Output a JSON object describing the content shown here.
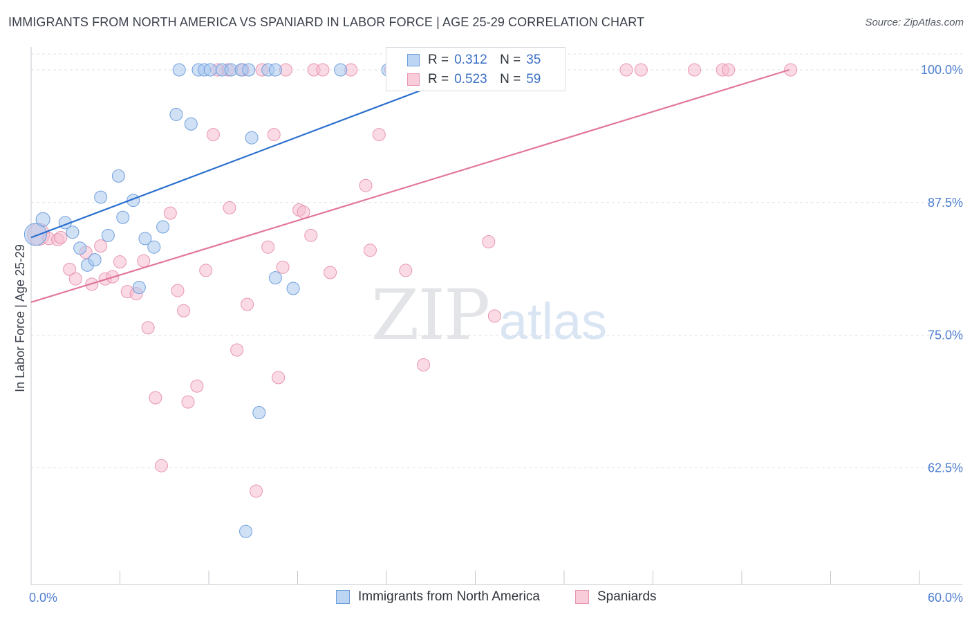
{
  "title": "IMMIGRANTS FROM NORTH AMERICA VS SPANIARD IN LABOR FORCE | AGE 25-29 CORRELATION CHART",
  "source": "Source: ZipAtlas.com",
  "watermark": {
    "zip": "ZIP",
    "atlas": "atlas"
  },
  "legend": {
    "r_label": "R =",
    "n_label": "N =",
    "series1": {
      "r": "0.312",
      "n": "35"
    },
    "series2": {
      "r": "0.523",
      "n": "59"
    }
  },
  "colors": {
    "blue_fill": "#a9c8ee",
    "blue_stroke": "#6d9edc",
    "blue_line": "#2a6fce",
    "pink_fill": "#f6bccd",
    "pink_stroke": "#e896b0",
    "pink_line": "#e2769c",
    "grid": "#dde0e6",
    "tick_text": "#4f7fd0"
  },
  "chart_data": {
    "type": "scatter",
    "title": "IMMIGRANTS FROM NORTH AMERICA VS SPANIARD IN LABOR FORCE | AGE 25-29 CORRELATION CHART",
    "xlabel": "",
    "ylabel": "In Labor Force | Age 25-29",
    "xlim": [
      0,
      60
    ],
    "ylim": [
      51.5,
      101.5
    ],
    "x_tick_labels": [
      "0.0%",
      "60.0%"
    ],
    "y_ticks": [
      62.5,
      75.0,
      87.5,
      100.0
    ],
    "y_tick_labels": [
      "62.5%",
      "75.0%",
      "87.5%",
      "100.0%"
    ],
    "grid": true,
    "legend_position": "top-center",
    "series": [
      {
        "name": "Immigrants from North America",
        "color": "blue",
        "r": 0.312,
        "n": 35,
        "trend": {
          "x": [
            0,
            30.0
          ],
          "y": [
            84.2,
            100.0
          ]
        },
        "points": [
          [
            0.3,
            84.5,
            16
          ],
          [
            0.8,
            85.9,
            10
          ],
          [
            2.3,
            85.6,
            9
          ],
          [
            2.8,
            84.7,
            9
          ],
          [
            3.3,
            83.2,
            9
          ],
          [
            3.8,
            81.6,
            9
          ],
          [
            4.3,
            82.1,
            9
          ],
          [
            4.7,
            88.0,
            9
          ],
          [
            5.2,
            84.4,
            9
          ],
          [
            5.9,
            90.0,
            9
          ],
          [
            6.2,
            86.1,
            9
          ],
          [
            6.9,
            87.7,
            9
          ],
          [
            7.3,
            79.5,
            9
          ],
          [
            7.7,
            84.1,
            9
          ],
          [
            8.3,
            83.3,
            9
          ],
          [
            8.9,
            85.2,
            9
          ],
          [
            9.8,
            95.8,
            9
          ],
          [
            10.0,
            100.0,
            9
          ],
          [
            10.8,
            94.9,
            9
          ],
          [
            11.3,
            100.0,
            9
          ],
          [
            11.7,
            100.0,
            9
          ],
          [
            12.1,
            100.0,
            9
          ],
          [
            12.9,
            100.0,
            9
          ],
          [
            13.5,
            100.0,
            9
          ],
          [
            14.2,
            100.0,
            9
          ],
          [
            14.7,
            100.0,
            9
          ],
          [
            14.5,
            56.5,
            9
          ],
          [
            14.9,
            93.6,
            9
          ],
          [
            15.4,
            67.7,
            9
          ],
          [
            16.0,
            100.0,
            9
          ],
          [
            16.5,
            100.0,
            9
          ],
          [
            16.5,
            80.4,
            9
          ],
          [
            17.7,
            79.4,
            9
          ],
          [
            20.9,
            100.0,
            9
          ],
          [
            24.1,
            100.0,
            9
          ]
        ]
      },
      {
        "name": "Spaniards",
        "color": "pink",
        "r": 0.523,
        "n": 59,
        "trend": {
          "x": [
            0,
            51.2
          ],
          "y": [
            78.1,
            100.0
          ]
        },
        "points": [
          [
            0.5,
            84.5,
            16
          ],
          [
            1.2,
            84.1,
            9
          ],
          [
            1.8,
            84.0,
            9
          ],
          [
            2.0,
            84.2,
            9
          ],
          [
            2.6,
            81.2,
            9
          ],
          [
            3.0,
            80.3,
            9
          ],
          [
            3.7,
            82.8,
            9
          ],
          [
            4.1,
            79.8,
            9
          ],
          [
            4.7,
            83.4,
            9
          ],
          [
            5.0,
            80.3,
            9
          ],
          [
            5.5,
            80.5,
            9
          ],
          [
            6.0,
            81.9,
            9
          ],
          [
            6.5,
            79.1,
            9
          ],
          [
            7.1,
            78.9,
            9
          ],
          [
            7.6,
            82.0,
            9
          ],
          [
            7.9,
            75.7,
            9
          ],
          [
            8.4,
            69.1,
            9
          ],
          [
            8.8,
            62.7,
            9
          ],
          [
            9.4,
            86.5,
            9
          ],
          [
            9.9,
            79.2,
            9
          ],
          [
            10.3,
            77.3,
            9
          ],
          [
            10.6,
            68.7,
            9
          ],
          [
            11.2,
            70.2,
            9
          ],
          [
            11.8,
            81.1,
            9
          ],
          [
            12.3,
            93.9,
            9
          ],
          [
            12.6,
            100.0,
            9
          ],
          [
            13.3,
            100.0,
            9
          ],
          [
            13.4,
            87.0,
            9
          ],
          [
            13.9,
            73.6,
            9
          ],
          [
            14.3,
            100.0,
            9
          ],
          [
            14.6,
            77.9,
            9
          ],
          [
            15.2,
            60.3,
            9
          ],
          [
            15.6,
            100.0,
            9
          ],
          [
            16.0,
            83.3,
            9
          ],
          [
            16.4,
            93.9,
            9
          ],
          [
            16.7,
            71.0,
            9
          ],
          [
            17.0,
            81.4,
            9
          ],
          [
            17.2,
            100.0,
            9
          ],
          [
            18.1,
            86.8,
            9
          ],
          [
            18.4,
            86.6,
            9
          ],
          [
            18.9,
            84.4,
            9
          ],
          [
            19.1,
            100.0,
            9
          ],
          [
            19.7,
            100.0,
            9
          ],
          [
            20.2,
            80.9,
            9
          ],
          [
            21.6,
            100.0,
            9
          ],
          [
            22.6,
            89.1,
            9
          ],
          [
            22.9,
            83.0,
            9
          ],
          [
            23.5,
            93.9,
            9
          ],
          [
            24.3,
            100.0,
            9
          ],
          [
            25.3,
            81.1,
            9
          ],
          [
            26.5,
            72.2,
            9
          ],
          [
            30.9,
            83.8,
            9
          ],
          [
            31.3,
            76.8,
            9
          ],
          [
            40.2,
            100.0,
            9
          ],
          [
            41.2,
            100.0,
            9
          ],
          [
            44.8,
            100.0,
            9
          ],
          [
            46.7,
            100.0,
            9
          ],
          [
            47.1,
            100.0,
            9
          ],
          [
            51.3,
            100.0,
            9
          ]
        ]
      }
    ]
  }
}
